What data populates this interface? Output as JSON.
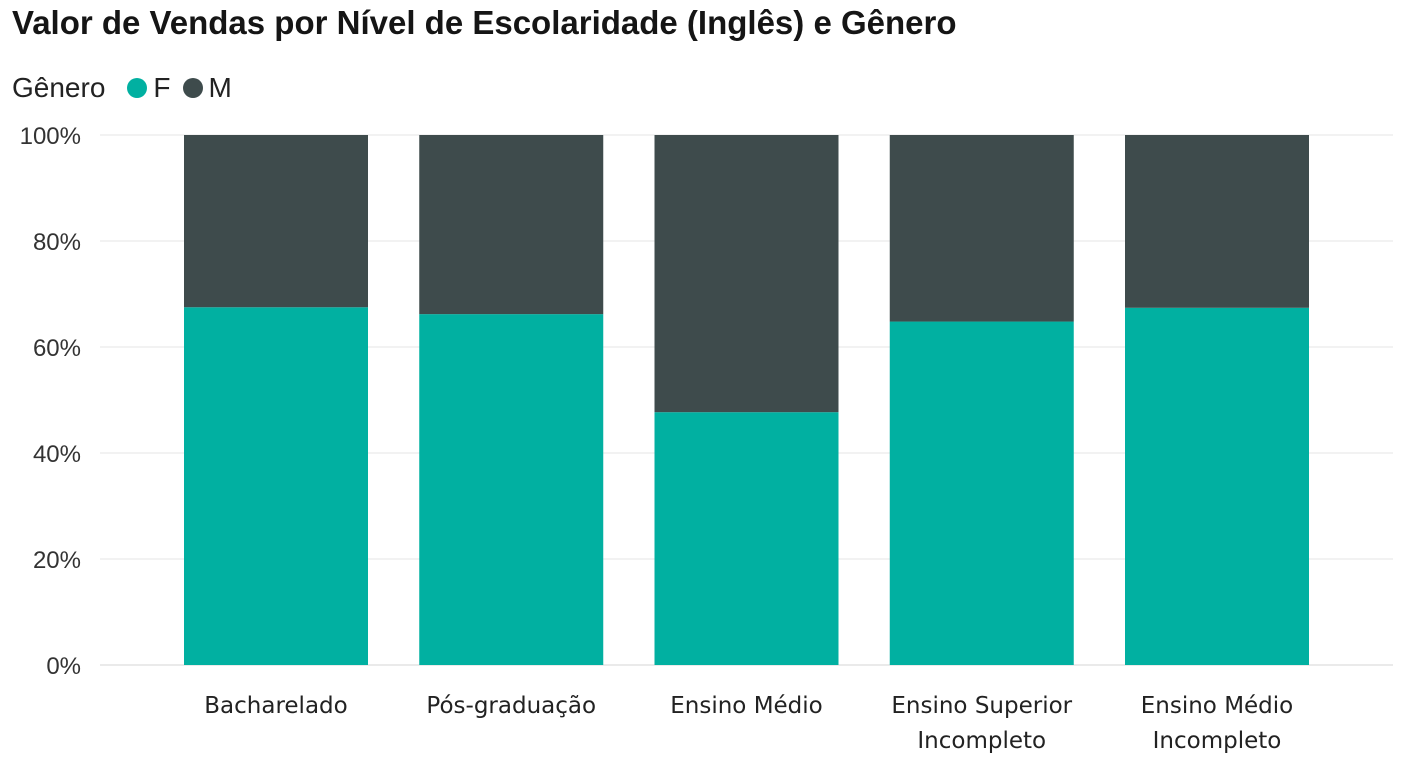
{
  "chart_data": {
    "type": "bar",
    "stacked": true,
    "normalized": true,
    "title": "Valor de Vendas por Nível de Escolaridade (Inglês) e Gênero",
    "legend": {
      "title": "Gênero",
      "placement": "top-left"
    },
    "categories": [
      [
        "Bacharelado"
      ],
      [
        "Pós-graduação"
      ],
      [
        "Ensino Médio"
      ],
      [
        "Ensino Superior",
        "Incompleto"
      ],
      [
        "Ensino Médio",
        "Incompleto"
      ]
    ],
    "series": [
      {
        "name": "F",
        "color": "#01B0A1",
        "values": [
          67.5,
          66.2,
          47.7,
          64.8,
          67.4
        ]
      },
      {
        "name": "M",
        "color": "#3E4B4C",
        "values": [
          32.5,
          33.8,
          52.3,
          35.2,
          32.6
        ]
      }
    ],
    "y_ticks": [
      "0%",
      "20%",
      "40%",
      "60%",
      "80%",
      "100%"
    ],
    "ylim": [
      0,
      100
    ],
    "grid": true
  }
}
